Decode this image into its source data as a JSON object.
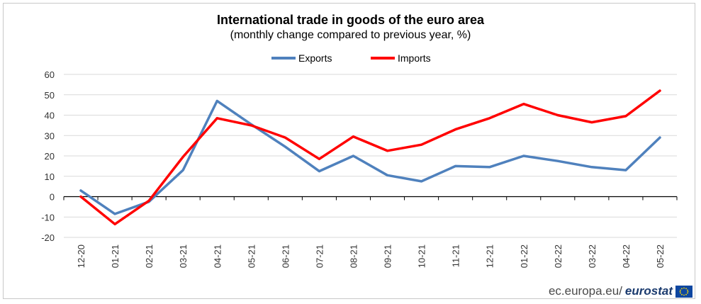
{
  "title": "International trade in goods of the euro area",
  "subtitle": "(monthly change compared to previous year, %)",
  "footer": {
    "url": "ec.europa.eu/",
    "brand": "eurostat"
  },
  "colors": {
    "exports": "#4f81bd",
    "imports": "#ff0000",
    "grid": "#d9d9d9",
    "axis": "#000000"
  },
  "chart_data": {
    "type": "line",
    "title": "International trade in goods of the euro area",
    "subtitle": "(monthly change compared to previous year, %)",
    "xlabel": "",
    "ylabel": "",
    "ylim": [
      -20,
      60
    ],
    "yticks": [
      60,
      50,
      40,
      30,
      20,
      10,
      0,
      -10,
      -20
    ],
    "grid": true,
    "legend": "top-center",
    "categories": [
      "12-20",
      "01-21",
      "02-21",
      "03-21",
      "04-21",
      "05-21",
      "06-21",
      "07-21",
      "08-21",
      "09-21",
      "10-21",
      "11-21",
      "12-21",
      "01-22",
      "02-22",
      "03-22",
      "04-22",
      "05-22"
    ],
    "series": [
      {
        "name": "Exports",
        "color": "#4f81bd",
        "values": [
          3,
          -8.5,
          -2.5,
          13,
          47,
          35.5,
          24.5,
          12.5,
          20,
          10.5,
          7.5,
          15,
          14.5,
          20,
          17.5,
          14.5,
          13,
          29
        ]
      },
      {
        "name": "Imports",
        "color": "#ff0000",
        "values": [
          0,
          -13.5,
          -2,
          19.5,
          38.5,
          35,
          29,
          18.5,
          29.5,
          22.5,
          25.5,
          33,
          38.5,
          45.5,
          40,
          36.5,
          39.5,
          52
        ]
      }
    ]
  }
}
